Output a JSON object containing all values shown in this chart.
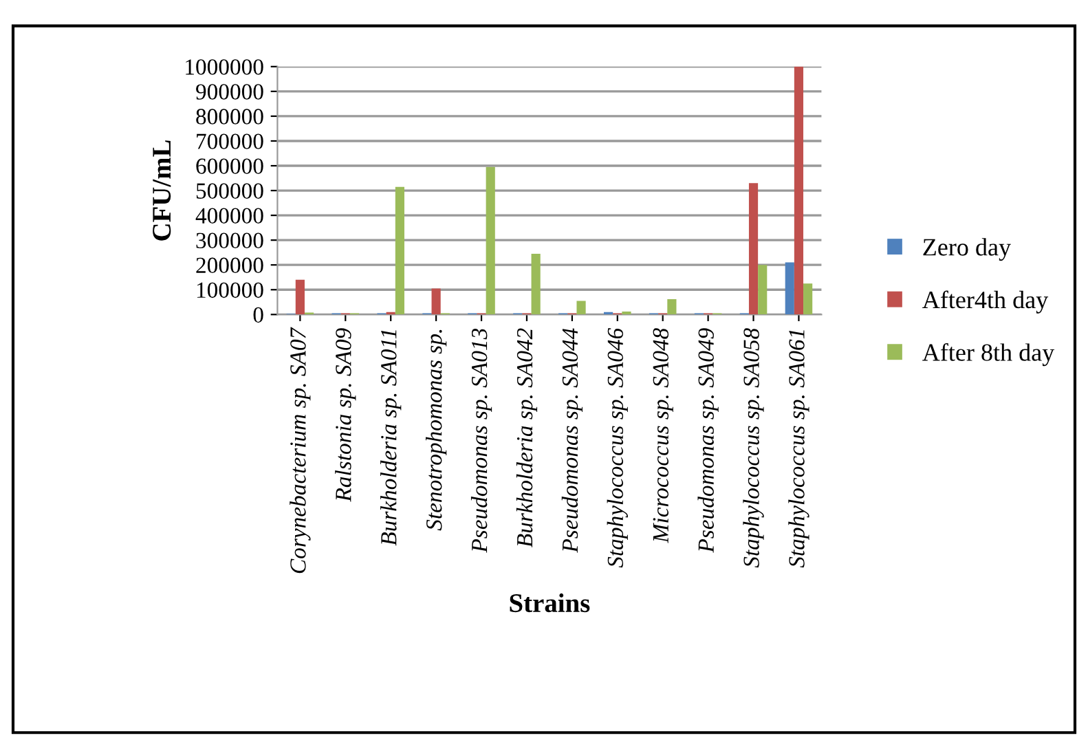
{
  "chart_data": {
    "type": "bar",
    "xlabel": "Strains",
    "ylabel": "CFU/mL",
    "categories": [
      "Corynebacterium sp. SA07",
      "Ralstonia sp. SA09",
      "Burkholderia sp. SA011",
      "Stenotrophomonas sp.",
      "Pseudomonas sp. SA013",
      "Burkholderia sp. SA042",
      "Pseudomonas sp. SA044",
      "Staphylococcus sp. SA046",
      "Micrococcus sp. SA048",
      "Pseudomonas sp. SA049",
      "Staphylococcus sp. SA058",
      "Staphylococcus sp. SA061"
    ],
    "series": [
      {
        "name": "Zero day",
        "color": "#4f81bd",
        "values": [
          3000,
          5000,
          5000,
          5000,
          5000,
          5000,
          5000,
          10000,
          5000,
          5000,
          5000,
          210000
        ]
      },
      {
        "name": "After4th day",
        "color": "#c0504d",
        "values": [
          140000,
          5000,
          10000,
          105000,
          5000,
          5000,
          5000,
          5000,
          5000,
          5000,
          530000,
          1000000
        ]
      },
      {
        "name": "After 8th day",
        "color": "#9bbb59",
        "values": [
          8000,
          5000,
          515000,
          5000,
          595000,
          245000,
          55000,
          12000,
          62000,
          5000,
          200000,
          125000
        ]
      }
    ],
    "ylim": [
      0,
      1000000
    ],
    "yticks": [
      0,
      100000,
      200000,
      300000,
      400000,
      500000,
      600000,
      700000,
      800000,
      900000,
      1000000
    ],
    "grid": "y",
    "legend": "right"
  }
}
